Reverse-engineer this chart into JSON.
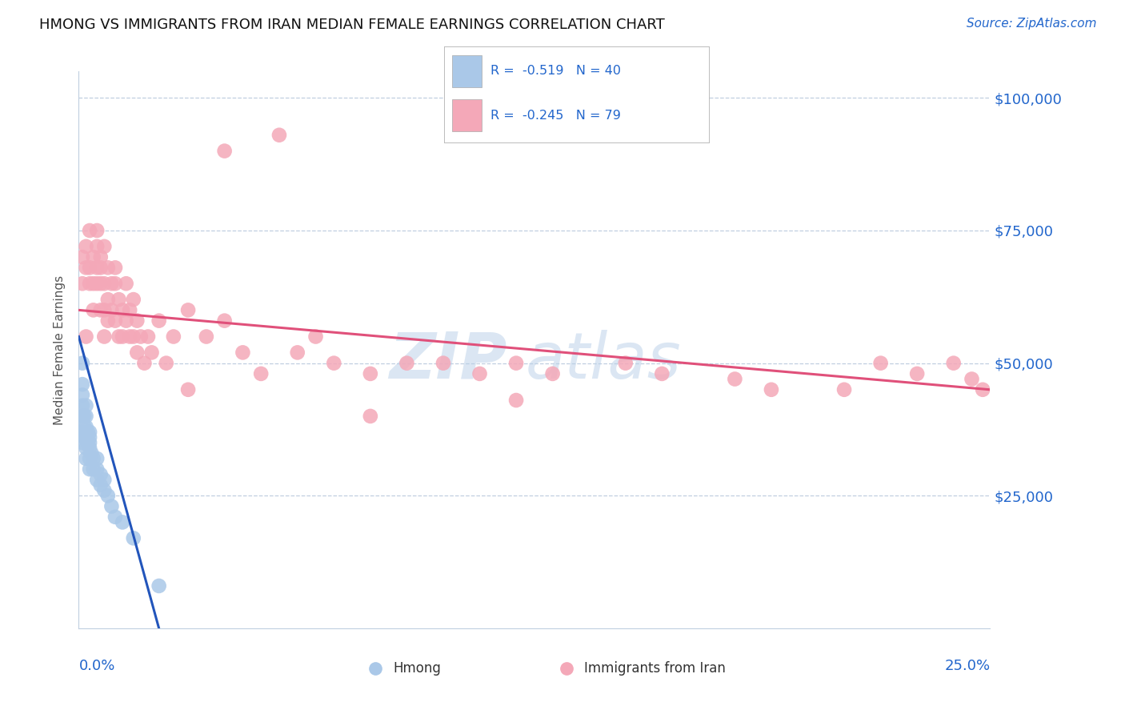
{
  "title": "HMONG VS IMMIGRANTS FROM IRAN MEDIAN FEMALE EARNINGS CORRELATION CHART",
  "source": "Source: ZipAtlas.com",
  "ylabel": "Median Female Earnings",
  "yticks": [
    0,
    25000,
    50000,
    75000,
    100000
  ],
  "xlim": [
    0.0,
    0.25
  ],
  "ylim": [
    0,
    105000
  ],
  "blue_color": "#aac8e8",
  "pink_color": "#f4a8b8",
  "blue_line_color": "#2255bb",
  "pink_line_color": "#e0507a",
  "text_color": "#2266cc",
  "background_color": "#ffffff",
  "hmong_x": [
    0.001,
    0.001,
    0.001,
    0.001,
    0.001,
    0.001,
    0.001,
    0.0015,
    0.0015,
    0.0015,
    0.002,
    0.002,
    0.002,
    0.002,
    0.002,
    0.002,
    0.0025,
    0.0025,
    0.003,
    0.003,
    0.003,
    0.003,
    0.003,
    0.003,
    0.0035,
    0.004,
    0.004,
    0.005,
    0.005,
    0.005,
    0.006,
    0.006,
    0.007,
    0.007,
    0.008,
    0.009,
    0.01,
    0.012,
    0.015,
    0.022
  ],
  "hmong_y": [
    35000,
    37000,
    40000,
    42000,
    44000,
    46000,
    50000,
    36000,
    38000,
    40000,
    32000,
    34000,
    36000,
    38000,
    40000,
    42000,
    35000,
    37000,
    30000,
    32000,
    34000,
    35000,
    36000,
    37000,
    33000,
    30000,
    32000,
    28000,
    30000,
    32000,
    27000,
    29000,
    26000,
    28000,
    25000,
    23000,
    21000,
    20000,
    17000,
    8000
  ],
  "iran_x": [
    0.001,
    0.001,
    0.002,
    0.002,
    0.002,
    0.003,
    0.003,
    0.003,
    0.004,
    0.004,
    0.004,
    0.005,
    0.005,
    0.005,
    0.005,
    0.006,
    0.006,
    0.006,
    0.006,
    0.007,
    0.007,
    0.007,
    0.007,
    0.008,
    0.008,
    0.008,
    0.009,
    0.009,
    0.01,
    0.01,
    0.01,
    0.011,
    0.011,
    0.012,
    0.012,
    0.013,
    0.013,
    0.014,
    0.014,
    0.015,
    0.015,
    0.016,
    0.016,
    0.017,
    0.018,
    0.019,
    0.02,
    0.022,
    0.024,
    0.026,
    0.03,
    0.03,
    0.035,
    0.04,
    0.045,
    0.05,
    0.06,
    0.065,
    0.07,
    0.08,
    0.09,
    0.1,
    0.11,
    0.12,
    0.13,
    0.15,
    0.16,
    0.18,
    0.19,
    0.21,
    0.22,
    0.23,
    0.24,
    0.245,
    0.248,
    0.04,
    0.055,
    0.08,
    0.12
  ],
  "iran_y": [
    65000,
    70000,
    68000,
    72000,
    55000,
    68000,
    65000,
    75000,
    70000,
    65000,
    60000,
    75000,
    68000,
    65000,
    72000,
    70000,
    65000,
    60000,
    68000,
    65000,
    72000,
    60000,
    55000,
    62000,
    68000,
    58000,
    60000,
    65000,
    58000,
    65000,
    68000,
    55000,
    62000,
    60000,
    55000,
    65000,
    58000,
    55000,
    60000,
    55000,
    62000,
    58000,
    52000,
    55000,
    50000,
    55000,
    52000,
    58000,
    50000,
    55000,
    60000,
    45000,
    55000,
    58000,
    52000,
    48000,
    52000,
    55000,
    50000,
    48000,
    50000,
    50000,
    48000,
    50000,
    48000,
    50000,
    48000,
    47000,
    45000,
    45000,
    50000,
    48000,
    50000,
    47000,
    45000,
    90000,
    93000,
    40000,
    43000
  ],
  "hmong_trend_x": [
    0.0,
    0.022
  ],
  "hmong_trend_y": [
    55000,
    0
  ],
  "iran_trend_x": [
    0.0,
    0.25
  ],
  "iran_trend_y": [
    60000,
    45000
  ]
}
